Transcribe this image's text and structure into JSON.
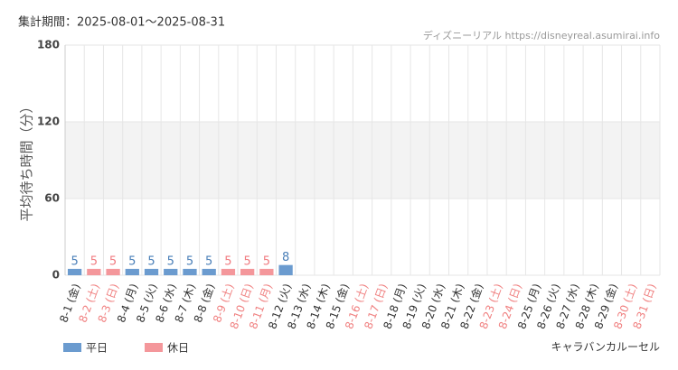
{
  "chart_data": {
    "type": "bar",
    "title": "集計期間：2025-08-01～2025-08-31",
    "source": "ディズニーリアル https://disneyreal.asumirai.info",
    "y_label": "平均待ち時間（分）",
    "attraction": "キャラバンカルーセル",
    "categories": [
      "8-1 (金)",
      "8-2 (土)",
      "8-3 (日)",
      "8-4 (月)",
      "8-5 (火)",
      "8-6 (水)",
      "8-7 (木)",
      "8-8 (金)",
      "8-9 (土)",
      "8-10 (日)",
      "8-11 (月)",
      "8-12 (火)",
      "8-13 (水)",
      "8-14 (木)",
      "8-15 (金)",
      "8-16 (土)",
      "8-17 (日)",
      "8-18 (月)",
      "8-19 (火)",
      "8-20 (水)",
      "8-21 (木)",
      "8-22 (金)",
      "8-23 (土)",
      "8-24 (日)",
      "8-25 (月)",
      "8-26 (火)",
      "8-27 (水)",
      "8-28 (木)",
      "8-29 (金)",
      "8-30 (土)",
      "8-31 (日)"
    ],
    "category_colors": [
      "#333",
      "#f08080",
      "#f08080",
      "#333",
      "#333",
      "#333",
      "#333",
      "#333",
      "#f08080",
      "#f08080",
      "#f08080",
      "#333",
      "#333",
      "#333",
      "#333",
      "#f08080",
      "#f08080",
      "#333",
      "#333",
      "#333",
      "#333",
      "#333",
      "#f08080",
      "#f08080",
      "#333",
      "#333",
      "#333",
      "#333",
      "#333",
      "#f08080",
      "#f08080"
    ],
    "series": [
      {
        "name": "平日",
        "color": "#6b9bcf",
        "label_color": "#4a7fb8",
        "values": [
          5,
          null,
          null,
          5,
          5,
          5,
          5,
          5,
          null,
          null,
          null,
          8,
          null,
          null,
          null,
          null,
          null,
          null,
          null,
          null,
          null,
          null,
          null,
          null,
          null,
          null,
          null,
          null,
          null,
          null,
          null
        ]
      },
      {
        "name": "休日",
        "color": "#f4979b",
        "label_color": "#f07b80",
        "values": [
          null,
          5,
          5,
          null,
          null,
          null,
          null,
          null,
          5,
          5,
          5,
          null,
          null,
          null,
          null,
          null,
          null,
          null,
          null,
          null,
          null,
          null,
          null,
          null,
          null,
          null,
          null,
          null,
          null,
          null,
          null
        ]
      }
    ],
    "ylim": [
      0,
      180
    ],
    "yticks": [
      0,
      60,
      120,
      180
    ],
    "grid": true
  }
}
